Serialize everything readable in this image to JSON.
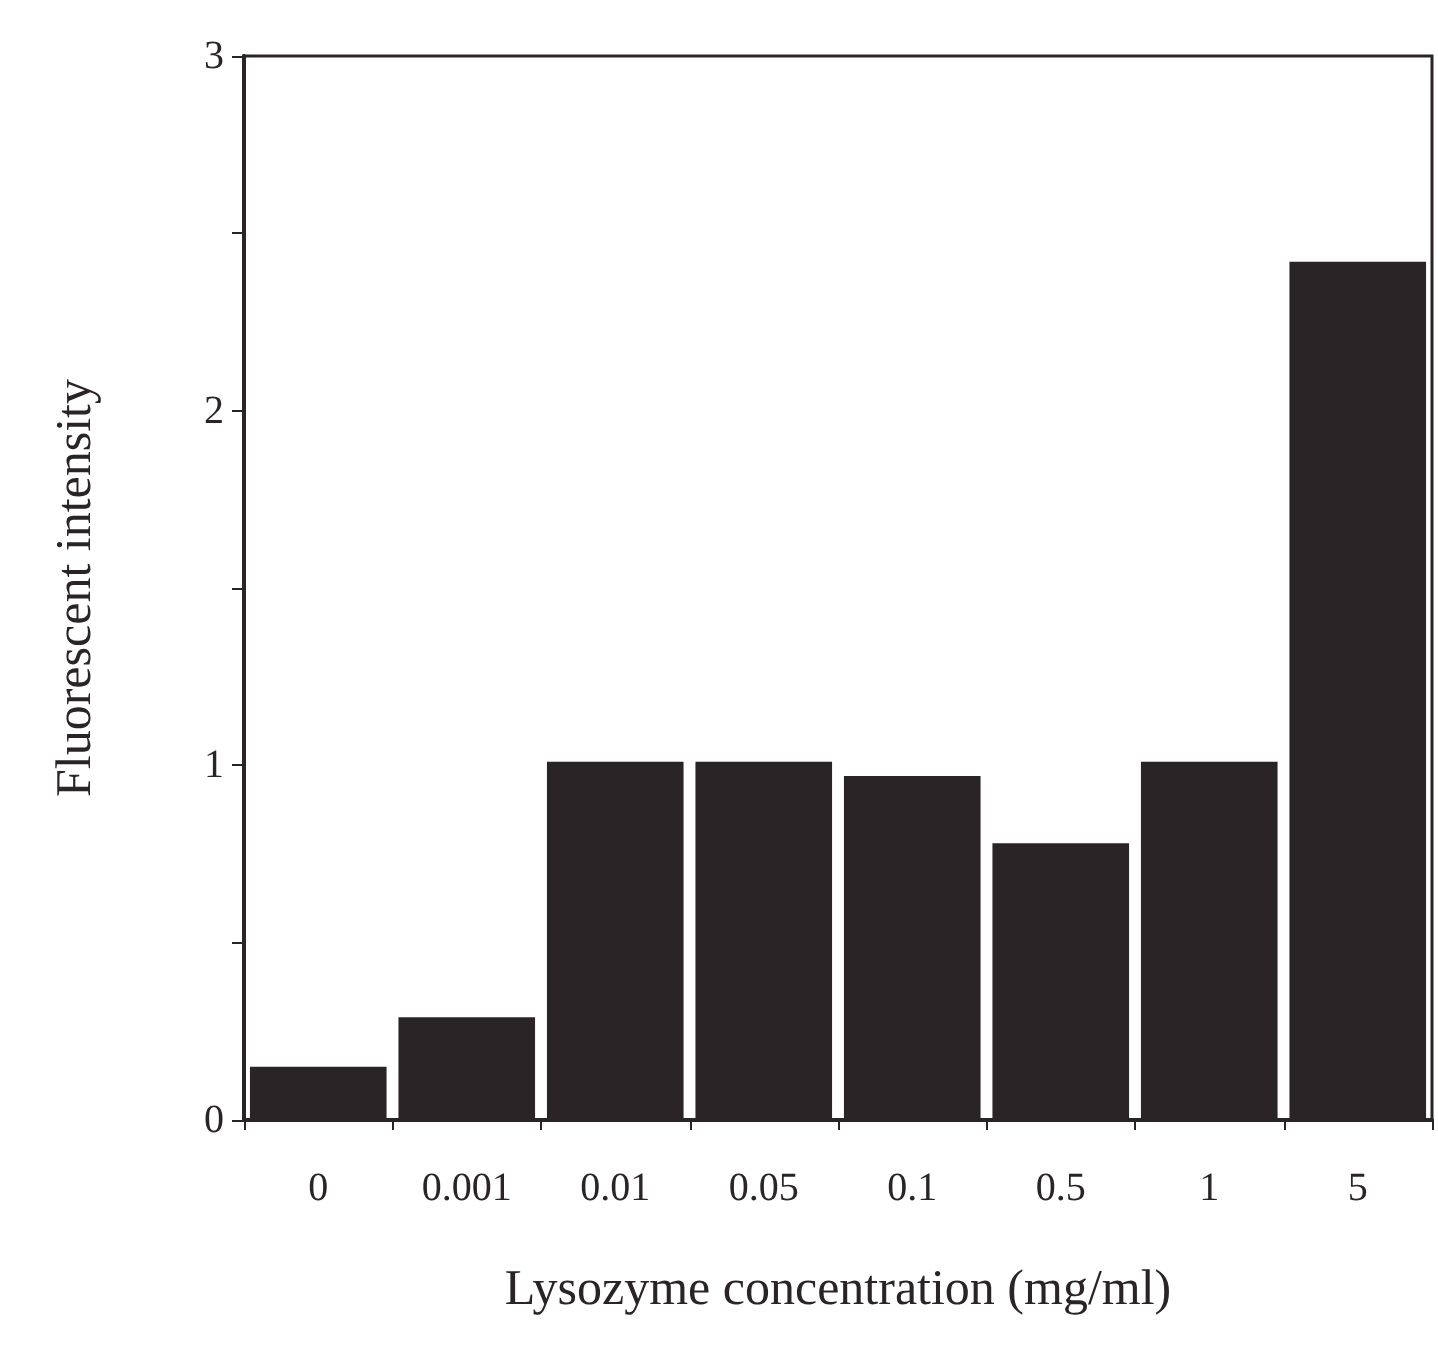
{
  "chart_data": {
    "type": "bar",
    "xlabel": "Lysozyme concentration (mg/ml)",
    "ylabel": "Fluorescent intensity",
    "categories": [
      "0",
      "0.001",
      "0.01",
      "0.05",
      "0.1",
      "0.5",
      "1",
      "5"
    ],
    "values": [
      0.15,
      0.29,
      1.01,
      1.01,
      0.97,
      0.78,
      1.01,
      2.42
    ],
    "color": "#2a2427",
    "ylim": [
      0,
      3
    ],
    "yticks": [
      0,
      {
        "value": 0.5,
        "label": null
      },
      1,
      {
        "value": 1.5,
        "label": null
      },
      2,
      {
        "value": 2.5,
        "label": null
      },
      3
    ],
    "grid": false
  }
}
